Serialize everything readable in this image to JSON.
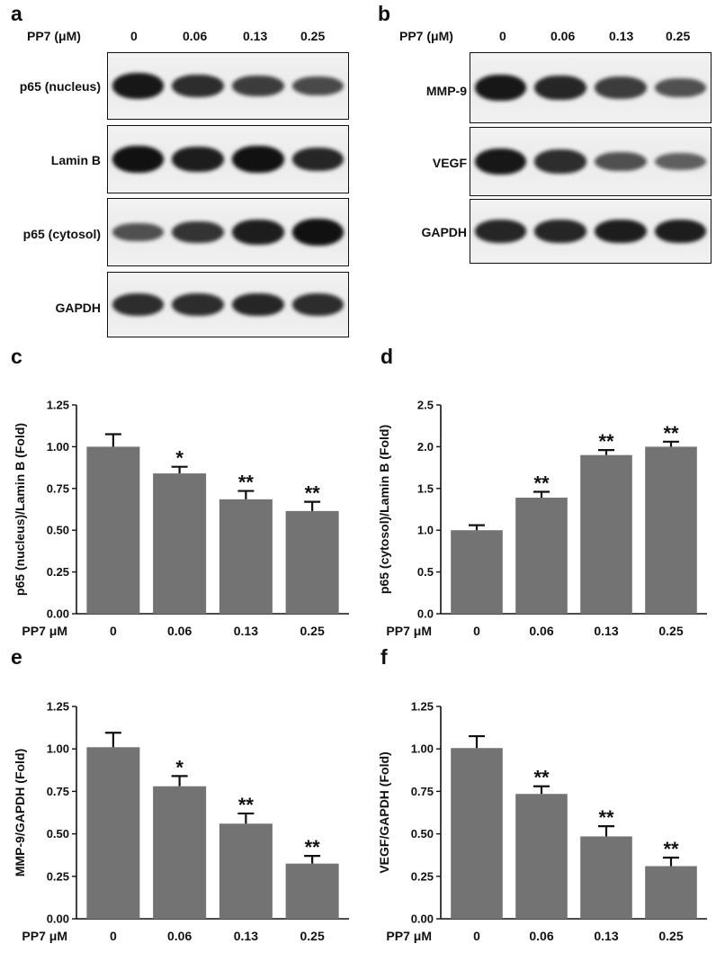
{
  "panel_letters": [
    "a",
    "b",
    "c",
    "d",
    "e",
    "f"
  ],
  "blot_a": {
    "header_label": "PP7 (μM)",
    "doses": [
      "0",
      "0.06",
      "0.13",
      "0.25"
    ],
    "rows": [
      {
        "label": "p65 (nucleus)",
        "intensity": [
          0.95,
          0.8,
          0.7,
          0.6
        ]
      },
      {
        "label": "Lamin B",
        "intensity": [
          1.0,
          0.9,
          1.0,
          0.85
        ]
      },
      {
        "label": "p65 (cytosol)",
        "intensity": [
          0.55,
          0.75,
          0.9,
          1.0
        ]
      },
      {
        "label": "GAPDH",
        "intensity": [
          0.8,
          0.8,
          0.85,
          0.8
        ]
      }
    ]
  },
  "blot_b": {
    "header_label": "PP7 (μM)",
    "doses": [
      "0",
      "0.06",
      "0.13",
      "0.25"
    ],
    "rows": [
      {
        "label": "MMP-9",
        "intensity": [
          0.95,
          0.85,
          0.7,
          0.55
        ]
      },
      {
        "label": "VEGF",
        "intensity": [
          0.95,
          0.8,
          0.55,
          0.45
        ]
      },
      {
        "label": "GAPDH",
        "intensity": [
          0.85,
          0.85,
          0.9,
          0.9
        ]
      }
    ]
  },
  "chart_data": [
    {
      "panel": "c",
      "type": "bar",
      "categories": [
        "0",
        "0.06",
        "0.13",
        "0.25"
      ],
      "xaxis_prefix": "PP7 μM",
      "ylabel": "p65 (nucleus)/Lamin B (Fold)",
      "values": [
        1.0,
        0.84,
        0.685,
        0.615
      ],
      "errors": [
        0.075,
        0.04,
        0.05,
        0.055
      ],
      "significance": [
        "",
        "*",
        "**",
        "**"
      ],
      "ylim": [
        0,
        1.25
      ],
      "yticks": [
        "0.00",
        "0.25",
        "0.50",
        "0.75",
        "1.00",
        "1.25"
      ],
      "ytick_values": [
        0,
        0.25,
        0.5,
        0.75,
        1.0,
        1.25
      ],
      "bar_color": "#737373"
    },
    {
      "panel": "d",
      "type": "bar",
      "categories": [
        "0",
        "0.06",
        "0.13",
        "0.25"
      ],
      "xaxis_prefix": "PP7 μM",
      "ylabel": "p65 (cytosol)/Lamin B (Fold)",
      "values": [
        1.0,
        1.39,
        1.9,
        2.0
      ],
      "errors": [
        0.06,
        0.07,
        0.06,
        0.06
      ],
      "significance": [
        "",
        "**",
        "**",
        "**"
      ],
      "ylim": [
        0,
        2.5
      ],
      "yticks": [
        "0.0",
        "0.5",
        "1.0",
        "1.5",
        "2.0",
        "2.5"
      ],
      "ytick_values": [
        0,
        0.5,
        1.0,
        1.5,
        2.0,
        2.5
      ],
      "bar_color": "#737373"
    },
    {
      "panel": "e",
      "type": "bar",
      "categories": [
        "0",
        "0.06",
        "0.13",
        "0.25"
      ],
      "xaxis_prefix": "PP7 μM",
      "ylabel": "MMP-9/GAPDH (Fold)",
      "values": [
        1.01,
        0.78,
        0.56,
        0.325
      ],
      "errors": [
        0.085,
        0.06,
        0.06,
        0.045
      ],
      "significance": [
        "",
        "*",
        "**",
        "**"
      ],
      "ylim": [
        0,
        1.25
      ],
      "yticks": [
        "0.00",
        "0.25",
        "0.50",
        "0.75",
        "1.00",
        "1.25"
      ],
      "ytick_values": [
        0,
        0.25,
        0.5,
        0.75,
        1.0,
        1.25
      ],
      "bar_color": "#737373"
    },
    {
      "panel": "f",
      "type": "bar",
      "categories": [
        "0",
        "0.06",
        "0.13",
        "0.25"
      ],
      "xaxis_prefix": "PP7 μM",
      "ylabel": "VEGF/GAPDH (Fold)",
      "values": [
        1.005,
        0.735,
        0.485,
        0.31
      ],
      "errors": [
        0.07,
        0.045,
        0.06,
        0.05
      ],
      "significance": [
        "",
        "**",
        "**",
        "**"
      ],
      "ylim": [
        0,
        1.25
      ],
      "yticks": [
        "0.00",
        "0.25",
        "0.50",
        "0.75",
        "1.00",
        "1.25"
      ],
      "ytick_values": [
        0,
        0.25,
        0.5,
        0.75,
        1.0,
        1.25
      ],
      "bar_color": "#737373"
    }
  ]
}
